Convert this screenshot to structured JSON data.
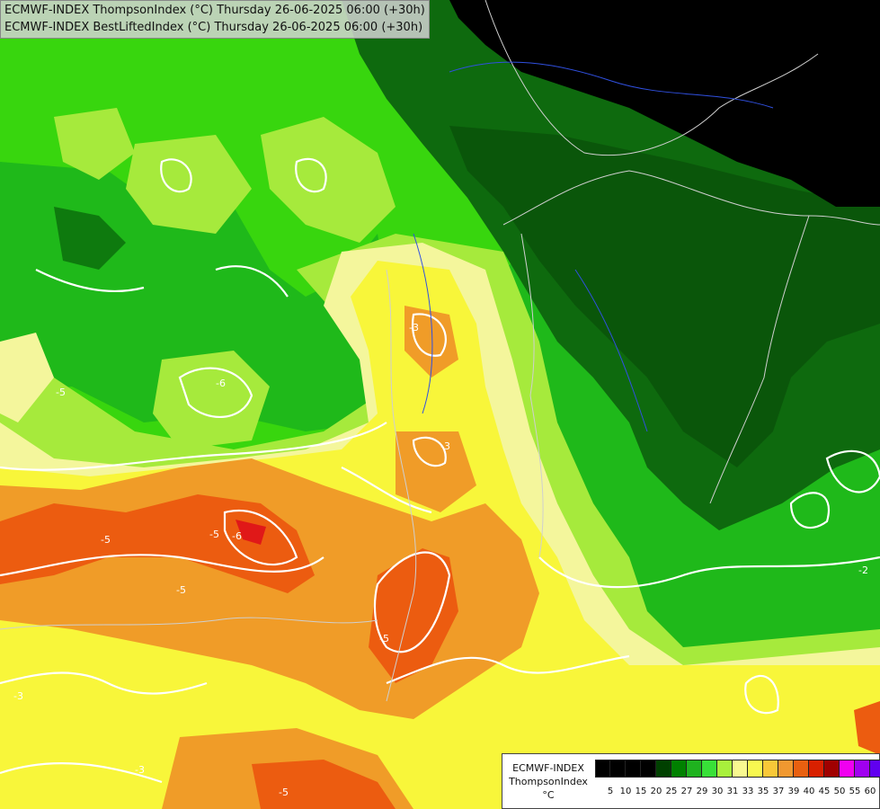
{
  "title_lines": [
    "ECMWF-INDEX ThompsonIndex (°C) Thursday 26-06-2025 06:00 (+30h)",
    "ECMWF-INDEX BestLiftedIndex (°C) Thursday 26-06-2025 06:00 (+30h)"
  ],
  "legend": {
    "title": "ECMWF-INDEX",
    "subtitle": "ThompsonIndex",
    "unit": "°C",
    "colors": [
      "#000000",
      "#000000",
      "#000000",
      "#000000",
      "#004000",
      "#008000",
      "#1fb21f",
      "#38e038",
      "#a8f03c",
      "#f8f890",
      "#f8f850",
      "#f8c838",
      "#f09830",
      "#e86010",
      "#d82000",
      "#a00000",
      "#f000f0",
      "#a000f0",
      "#6000f0",
      "#2000f8"
    ],
    "ticks": [
      "5",
      "10",
      "15",
      "20",
      "25",
      "27",
      "29",
      "30",
      "31",
      "33",
      "35",
      "37",
      "39",
      "40",
      "45",
      "50",
      "55",
      "60"
    ]
  },
  "contour_labels": [
    "-5",
    "-3",
    "-5",
    "-3",
    "-6",
    "-5",
    "-3",
    "-5",
    "-5",
    "-6",
    "-5",
    "-3",
    "-2"
  ],
  "palette": {
    "black": "#000000",
    "dark_green": "#0a5a0a",
    "mid_dark_green": "#168a16",
    "green": "#3ad80f",
    "light_green": "#a4ec3c",
    "pale_yellow": "#f6f6a0",
    "yellow": "#f8f840",
    "orange": "#f0a028",
    "red_orange": "#ec5c10",
    "red": "#e01818"
  }
}
